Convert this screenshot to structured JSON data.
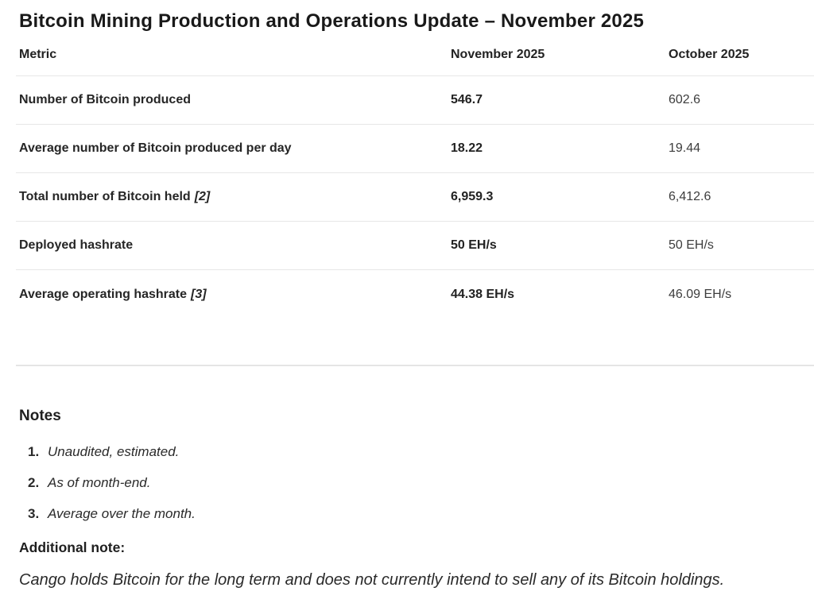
{
  "page": {
    "title": "Bitcoin Mining Production and Operations Update – November 2025"
  },
  "table": {
    "columns": [
      "Metric",
      "November 2025",
      "October 2025"
    ],
    "rows": [
      {
        "metric": "Number of Bitcoin produced",
        "ref": "",
        "nov": "546.7",
        "oct": "602.6"
      },
      {
        "metric": "Average number of Bitcoin produced per day",
        "ref": "",
        "nov": "18.22",
        "oct": "19.44"
      },
      {
        "metric": "Total number of Bitcoin held",
        "ref": "[2]",
        "nov": "6,959.3",
        "oct": "6,412.6"
      },
      {
        "metric": "Deployed hashrate",
        "ref": "",
        "nov": "50 EH/s",
        "oct": "50 EH/s"
      },
      {
        "metric": "Average operating hashrate",
        "ref": "[3]",
        "nov": "44.38 EH/s",
        "oct": "46.09 EH/s"
      }
    ]
  },
  "notes": {
    "heading": "Notes",
    "items": [
      {
        "num": "1.",
        "text": "Unaudited, estimated."
      },
      {
        "num": "2.",
        "text": "As of month-end."
      },
      {
        "num": "3.",
        "text": "Average over the month."
      }
    ]
  },
  "additional_note": {
    "heading": "Additional note:",
    "text": "Cango holds Bitcoin for the long term and does not currently intend to sell any of its Bitcoin holdings."
  },
  "colors": {
    "text": "#1f1f1f",
    "secondary_text": "#3d3d3d",
    "divider": "#e7e7e7",
    "background": "#ffffff"
  }
}
